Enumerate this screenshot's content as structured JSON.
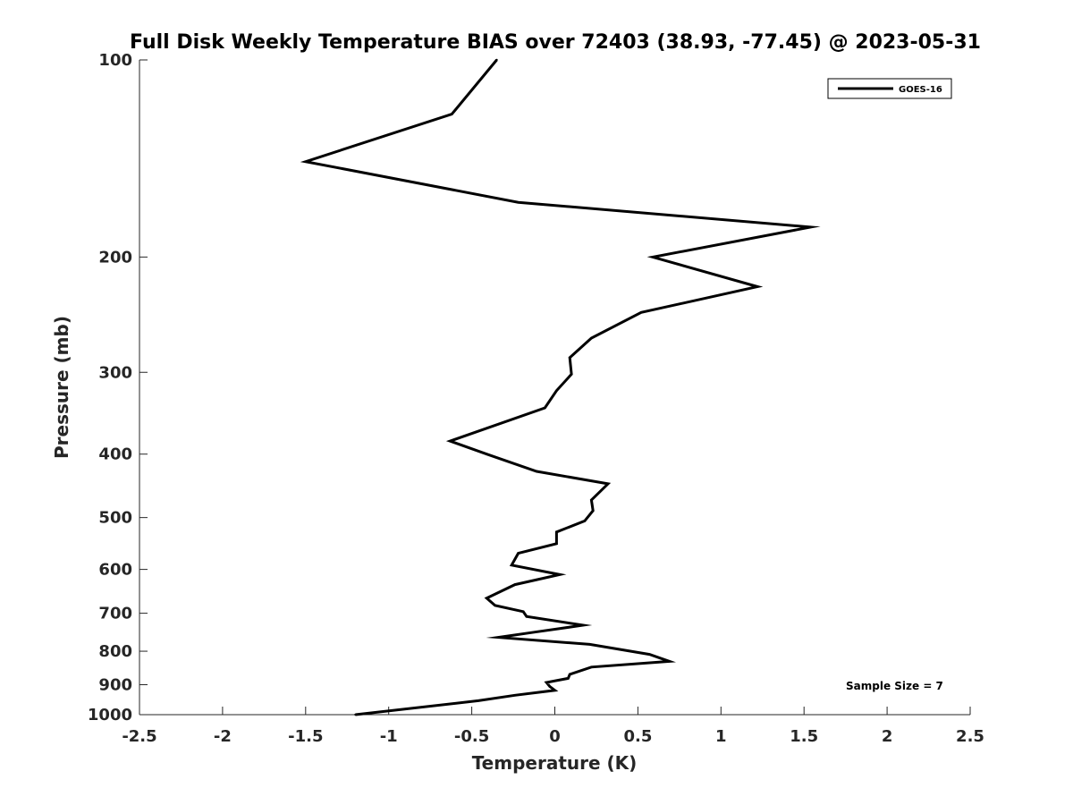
{
  "chart_data": {
    "type": "line",
    "title": "Full Disk Weekly Temperature BIAS over 72403 (38.93, -77.45) @ 2023-05-31",
    "xlabel": "Temperature (K)",
    "ylabel": "Pressure (mb)",
    "xlim": [
      -2.5,
      2.5
    ],
    "ylim": [
      100,
      1000
    ],
    "y_scale": "log",
    "y_reversed": true,
    "x_ticks": [
      -2.5,
      -2,
      -1.5,
      -1,
      -0.5,
      0,
      0.5,
      1,
      1.5,
      2,
      2.5
    ],
    "x_tick_labels": [
      "-2.5",
      "-2",
      "-1.5",
      "-1",
      "-0.5",
      "0",
      "0.5",
      "1",
      "1.5",
      "2",
      "2.5"
    ],
    "y_ticks": [
      100,
      200,
      300,
      400,
      500,
      600,
      700,
      800,
      900,
      1000
    ],
    "y_tick_labels": [
      "100",
      "200",
      "300",
      "400",
      "500",
      "600",
      "700",
      "800",
      "900",
      "1000"
    ],
    "grid": false,
    "legend_position": "top-right",
    "annotation": "Sample Size = 7",
    "series": [
      {
        "name": "GOES-16",
        "color": "#000000",
        "points": [
          [
            -0.35,
            100
          ],
          [
            -0.62,
            121
          ],
          [
            -1.5,
            143
          ],
          [
            -0.22,
            165
          ],
          [
            1.54,
            180
          ],
          [
            0.59,
            200
          ],
          [
            1.22,
            222
          ],
          [
            0.52,
            243
          ],
          [
            0.22,
            266
          ],
          [
            0.09,
            285
          ],
          [
            0.1,
            302
          ],
          [
            0.01,
            320
          ],
          [
            -0.06,
            340
          ],
          [
            -0.63,
            382
          ],
          [
            -0.41,
            400
          ],
          [
            -0.11,
            425
          ],
          [
            0.32,
            444
          ],
          [
            0.22,
            470
          ],
          [
            0.23,
            488
          ],
          [
            0.18,
            506
          ],
          [
            0.01,
            526
          ],
          [
            0.01,
            548
          ],
          [
            -0.22,
            567
          ],
          [
            -0.26,
            591
          ],
          [
            0.03,
            611
          ],
          [
            -0.24,
            633
          ],
          [
            -0.41,
            664
          ],
          [
            -0.36,
            681
          ],
          [
            -0.19,
            696
          ],
          [
            -0.17,
            708
          ],
          [
            0.17,
            730
          ],
          [
            -0.12,
            748
          ],
          [
            -0.34,
            762
          ],
          [
            0.21,
            781
          ],
          [
            0.57,
            809
          ],
          [
            0.69,
            829
          ],
          [
            0.22,
            846
          ],
          [
            0.09,
            868
          ],
          [
            0.08,
            880
          ],
          [
            -0.05,
            893
          ],
          [
            -0.03,
            906
          ],
          [
            0.0,
            918
          ],
          [
            -0.24,
            934
          ],
          [
            -0.46,
            952
          ],
          [
            -1.2,
            1000
          ]
        ]
      }
    ]
  }
}
